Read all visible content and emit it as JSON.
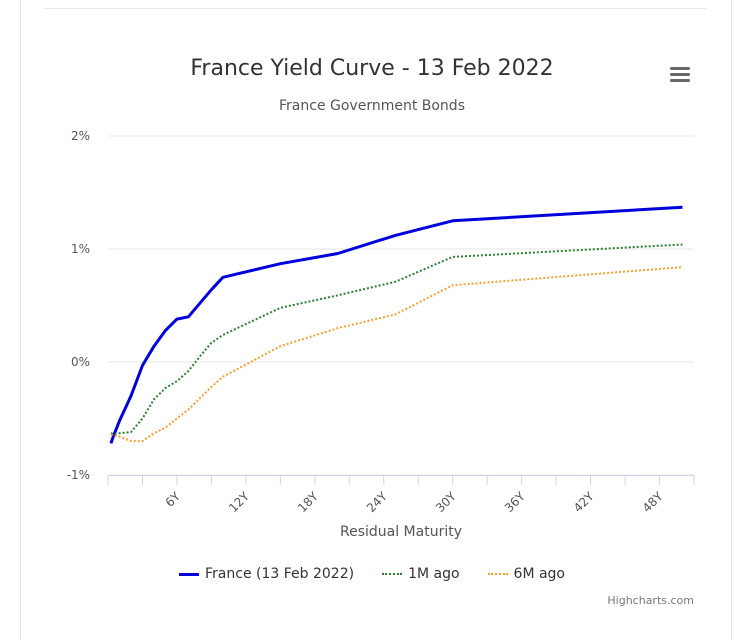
{
  "chart_data": {
    "type": "line",
    "title": "France Yield Curve - 13 Feb 2022",
    "subtitle": "France Government Bonds",
    "xlabel": "Residual Maturity",
    "ylabel": "",
    "ylim": [
      -1,
      2
    ],
    "xlim": [
      0,
      51
    ],
    "y_ticks": [
      {
        "value": -1,
        "label": "-1%"
      },
      {
        "value": 0,
        "label": "0%"
      },
      {
        "value": 1,
        "label": "1%"
      },
      {
        "value": 2,
        "label": "2%"
      }
    ],
    "x_ticks": [
      {
        "value": 6,
        "label": "6Y"
      },
      {
        "value": 12,
        "label": "12Y"
      },
      {
        "value": 18,
        "label": "18Y"
      },
      {
        "value": 24,
        "label": "24Y"
      },
      {
        "value": 30,
        "label": "30Y"
      },
      {
        "value": 36,
        "label": "36Y"
      },
      {
        "value": 42,
        "label": "42Y"
      },
      {
        "value": 48,
        "label": "48Y"
      }
    ],
    "grid": true,
    "legend_position": "bottom-center",
    "series": [
      {
        "name": "France (13 Feb 2022)",
        "color": "#0000dd",
        "dash": "solid",
        "points": [
          [
            0.25,
            -0.72
          ],
          [
            0.5,
            -0.65
          ],
          [
            1,
            -0.52
          ],
          [
            2,
            -0.3
          ],
          [
            3,
            -0.03
          ],
          [
            4,
            0.14
          ],
          [
            5,
            0.28
          ],
          [
            6,
            0.38
          ],
          [
            7,
            0.4
          ],
          [
            8,
            0.52
          ],
          [
            9,
            0.64
          ],
          [
            10,
            0.75
          ],
          [
            15,
            0.87
          ],
          [
            20,
            0.96
          ],
          [
            25,
            1.12
          ],
          [
            30,
            1.25
          ],
          [
            50,
            1.37
          ]
        ]
      },
      {
        "name": "1M ago",
        "color": "#2e7d32",
        "dash": "dotted",
        "points": [
          [
            0.25,
            -0.63
          ],
          [
            0.5,
            -0.64
          ],
          [
            1,
            -0.63
          ],
          [
            2,
            -0.62
          ],
          [
            3,
            -0.5
          ],
          [
            4,
            -0.33
          ],
          [
            5,
            -0.23
          ],
          [
            6,
            -0.17
          ],
          [
            7,
            -0.08
          ],
          [
            8,
            0.05
          ],
          [
            9,
            0.17
          ],
          [
            10,
            0.24
          ],
          [
            15,
            0.48
          ],
          [
            20,
            0.59
          ],
          [
            25,
            0.71
          ],
          [
            30,
            0.93
          ],
          [
            50,
            1.04
          ]
        ]
      },
      {
        "name": "6M ago",
        "color": "#f5a030",
        "dash": "dotted",
        "points": [
          [
            0.25,
            -0.64
          ],
          [
            0.5,
            -0.65
          ],
          [
            1,
            -0.66
          ],
          [
            2,
            -0.7
          ],
          [
            3,
            -0.7
          ],
          [
            4,
            -0.63
          ],
          [
            5,
            -0.58
          ],
          [
            6,
            -0.5
          ],
          [
            7,
            -0.42
          ],
          [
            8,
            -0.32
          ],
          [
            9,
            -0.22
          ],
          [
            10,
            -0.13
          ],
          [
            15,
            0.14
          ],
          [
            20,
            0.3
          ],
          [
            25,
            0.42
          ],
          [
            30,
            0.68
          ],
          [
            50,
            0.84
          ]
        ]
      }
    ]
  },
  "credits": "Highcharts.com"
}
